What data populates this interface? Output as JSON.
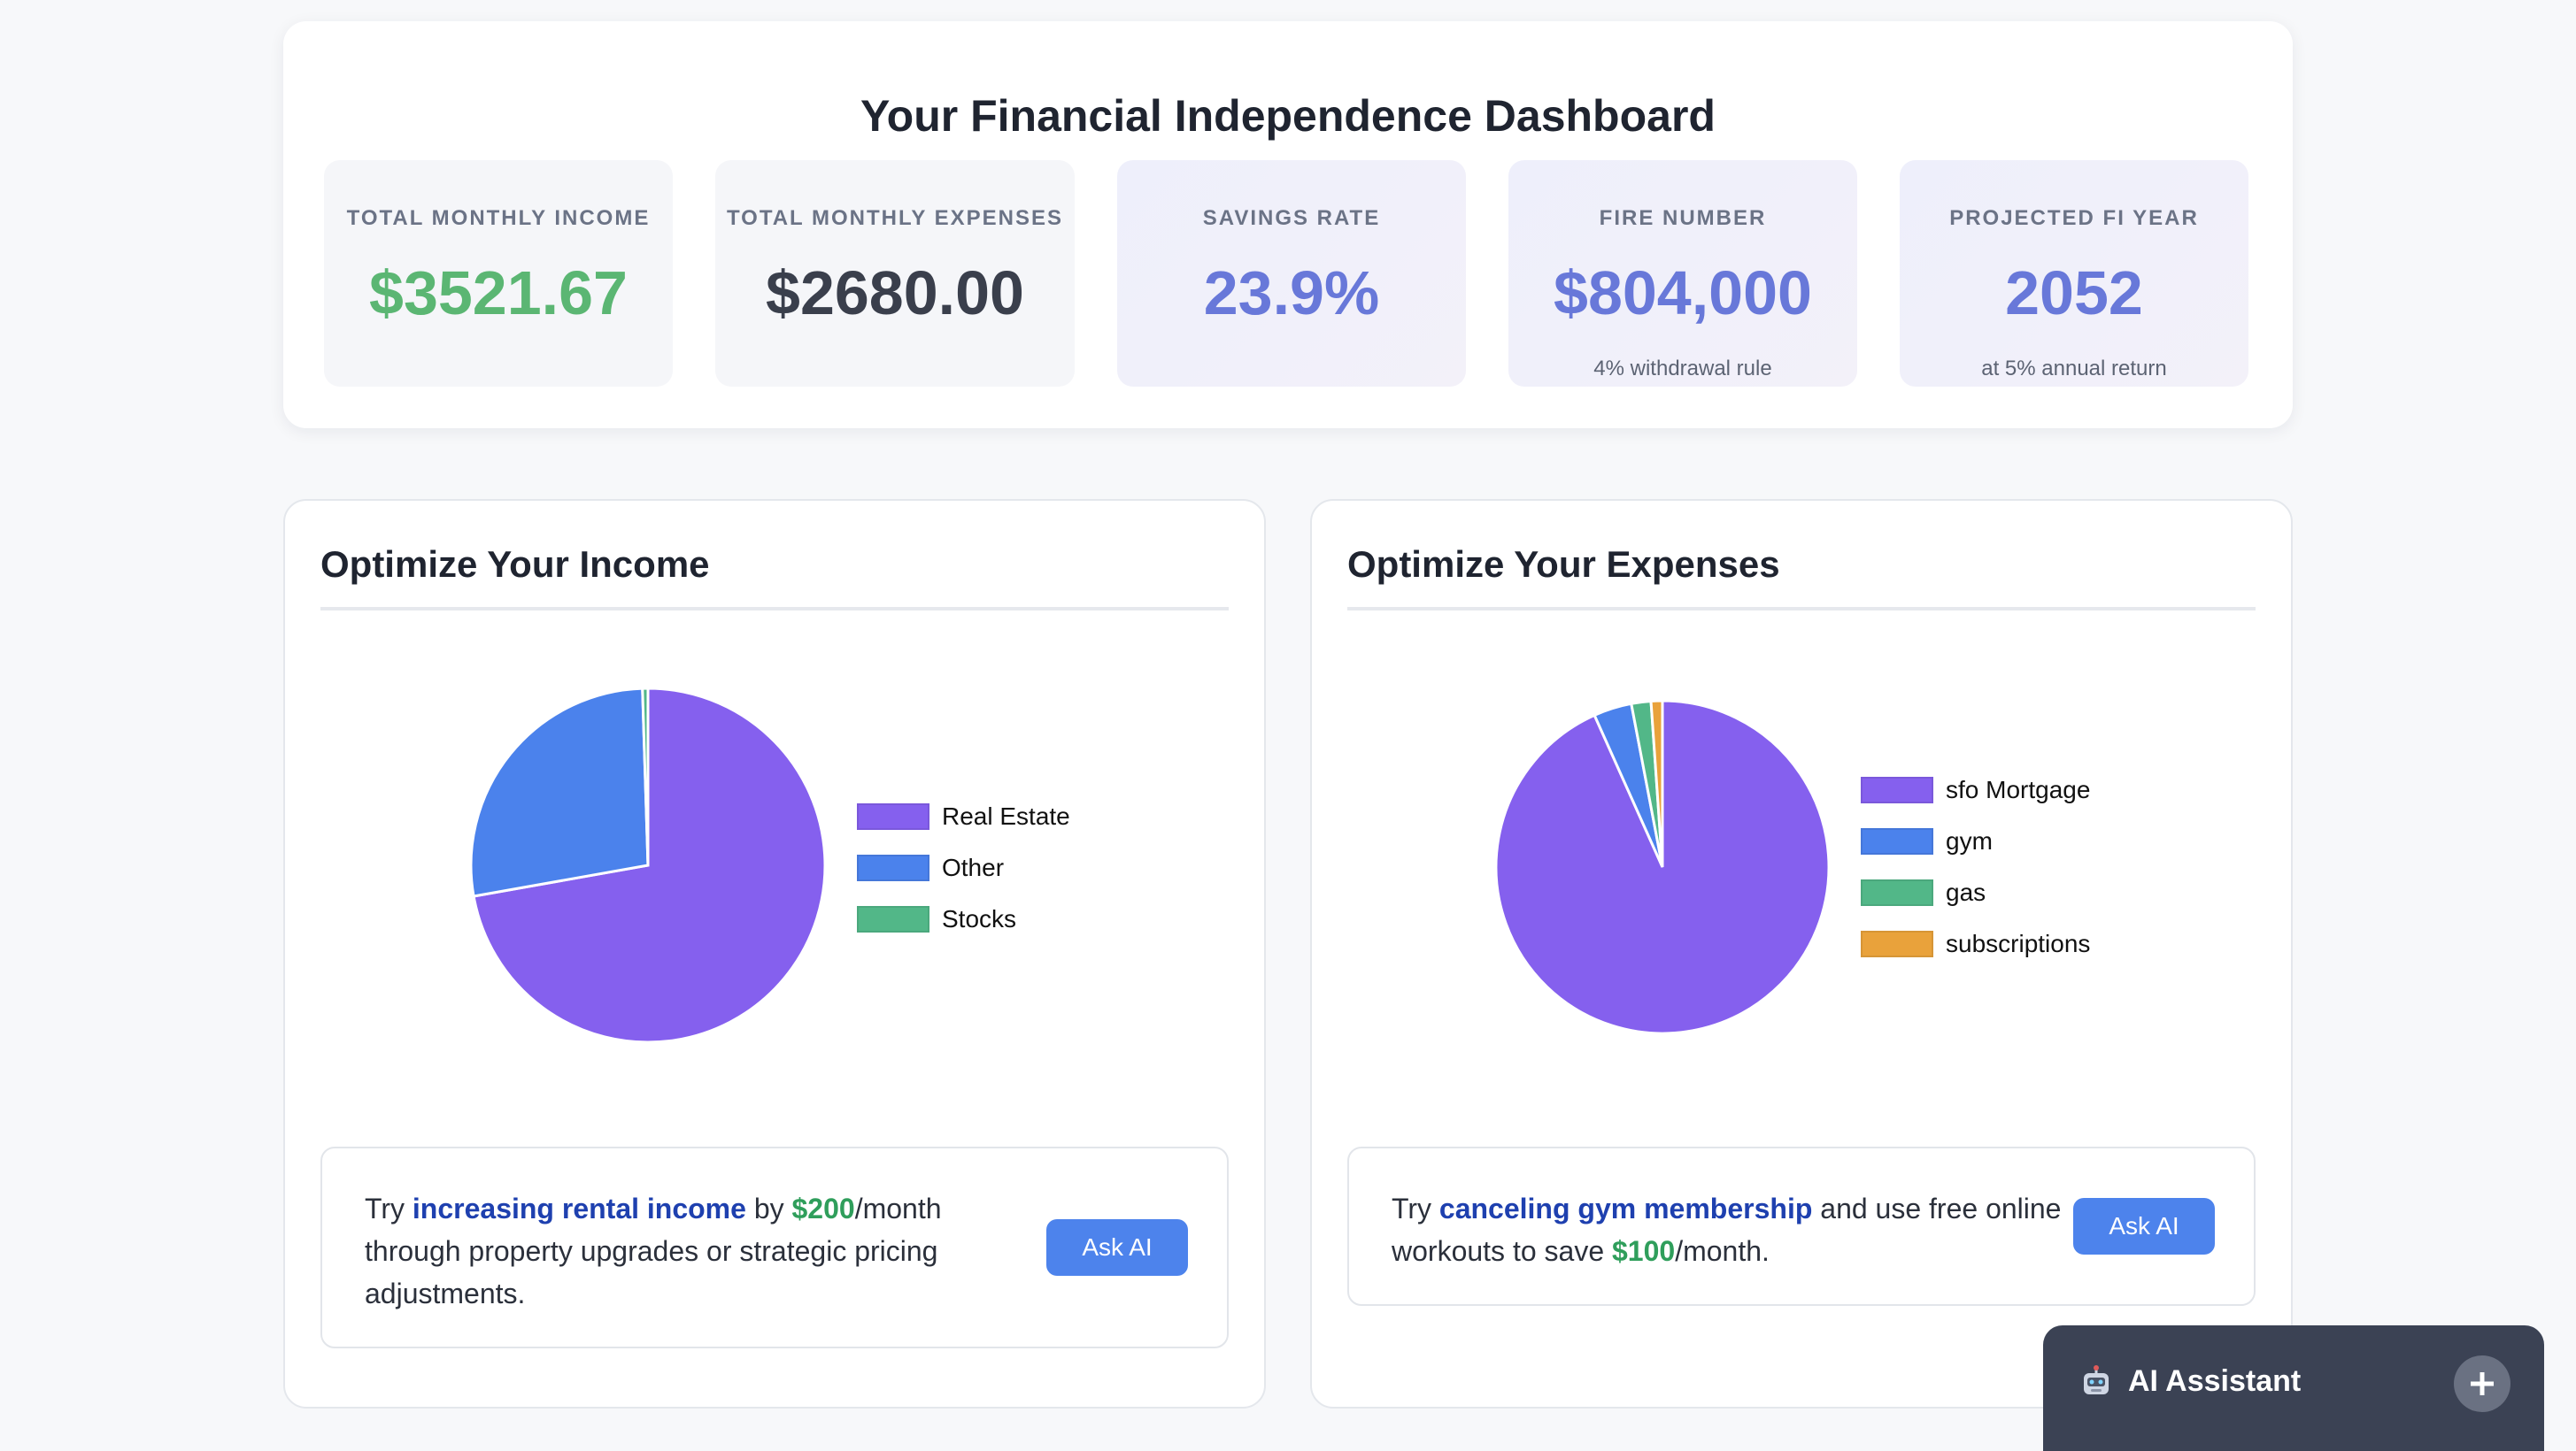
{
  "dashboard": {
    "title": "Your Financial Independence Dashboard",
    "stats": [
      {
        "label": "TOTAL MONTHLY INCOME",
        "value": "$3521.67",
        "sub": "",
        "color": "#5bb673"
      },
      {
        "label": "TOTAL MONTHLY EXPENSES",
        "value": "$2680.00",
        "sub": "",
        "color": "#3a3f4c"
      },
      {
        "label": "SAVINGS RATE",
        "value": "23.9%",
        "sub": "",
        "color": "#6878d9"
      },
      {
        "label": "FIRE NUMBER",
        "value": "$804,000",
        "sub": "4% withdrawal rule",
        "color": "#6878d9"
      },
      {
        "label": "PROJECTED FI YEAR",
        "value": "2052",
        "sub": "at 5% annual return",
        "color": "#6878d9"
      }
    ]
  },
  "income": {
    "title": "Optimize Your Income",
    "tip": {
      "before": "Try ",
      "highlight": "increasing rental income",
      "middle": " by ",
      "amount": "$200",
      "after_line1": "/month",
      "line2": "through property upgrades or strategic pricing",
      "line3": "adjustments."
    },
    "button": "Ask AI"
  },
  "expenses": {
    "title": "Optimize Your Expenses",
    "tip": {
      "before": "Try ",
      "highlight": "canceling gym membership",
      "after_line1": " and use free online",
      "line2_before": "workouts to save ",
      "amount": "$100",
      "line2_after": "/month."
    },
    "button": "Ask AI"
  },
  "assistant": {
    "title": "AI Assistant",
    "icon": "robot-icon",
    "toggle_icon": "plus-icon"
  },
  "chart_data": [
    {
      "type": "pie",
      "title": "",
      "labels": [
        "Real Estate",
        "Other",
        "Stocks"
      ],
      "values": [
        72.2,
        27.3,
        0.5
      ],
      "colors": [
        "#8560ee",
        "#4b82ec",
        "#52b788"
      ],
      "legend": "right"
    },
    {
      "type": "pie",
      "title": "",
      "labels": [
        "sfo Mortgage",
        "gym",
        "gas",
        "subscriptions"
      ],
      "values": [
        93.3,
        3.7,
        1.9,
        1.1
      ],
      "colors": [
        "#8560ee",
        "#4b82ec",
        "#52b788",
        "#e9a23b"
      ],
      "legend": "right"
    }
  ]
}
